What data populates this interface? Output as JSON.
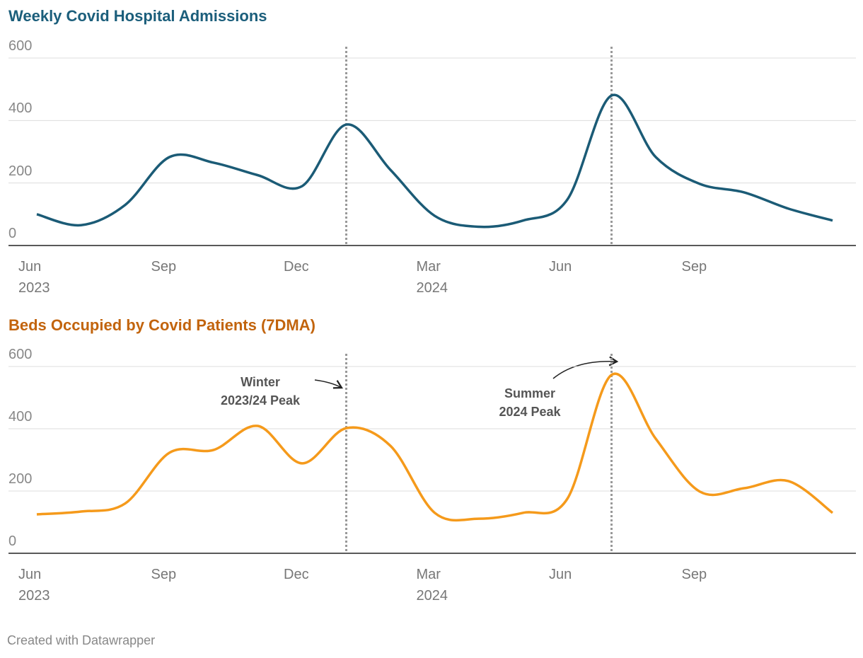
{
  "chart_data": [
    {
      "type": "line",
      "title": "Weekly Covid Hospital Admissions",
      "color": "#1b5b76",
      "title_color": "#1b5e7b",
      "x": [
        "2023-06",
        "2023-07",
        "2023-08",
        "2023-09",
        "2023-10",
        "2023-11",
        "2023-12",
        "2024-01",
        "2024-02",
        "2024-03",
        "2024-04",
        "2024-05",
        "2024-06",
        "2024-07",
        "2024-08",
        "2024-09",
        "2024-10",
        "2024-11",
        "2024-12"
      ],
      "values": [
        100,
        65,
        130,
        283,
        265,
        225,
        190,
        387,
        242,
        95,
        60,
        80,
        147,
        480,
        283,
        197,
        170,
        118,
        80
      ],
      "xlim": [
        "2023-06",
        "2024-12"
      ],
      "xticks": [
        {
          "value": "2023-06",
          "label": "Jun 2023"
        },
        {
          "value": "2023-09",
          "label": "Sep"
        },
        {
          "value": "2023-12",
          "label": "Dec"
        },
        {
          "value": "2024-03",
          "label": "Mar 2024"
        },
        {
          "value": "2024-06",
          "label": "Jun"
        },
        {
          "value": "2024-09",
          "label": "Sep"
        }
      ],
      "ylim": [
        0,
        600
      ],
      "yticks": [
        0,
        200,
        400,
        600
      ],
      "grid": true,
      "vlines": [
        "2024-01",
        "2024-07"
      ]
    },
    {
      "type": "line",
      "title": "Beds Occupied by Covid Patients (7DMA)",
      "color": "#f59a1b",
      "title_color": "#c2640d",
      "x": [
        "2023-06",
        "2023-07",
        "2023-08",
        "2023-09",
        "2023-10",
        "2023-11",
        "2023-12",
        "2024-01",
        "2024-02",
        "2024-03",
        "2024-04",
        "2024-05",
        "2024-06",
        "2024-07",
        "2024-08",
        "2024-09",
        "2024-10",
        "2024-11",
        "2024-12"
      ],
      "values": [
        125,
        134,
        160,
        323,
        332,
        409,
        289,
        402,
        345,
        130,
        111,
        130,
        175,
        573,
        368,
        198,
        209,
        232,
        130
      ],
      "xlim": [
        "2023-06",
        "2024-12"
      ],
      "xticks": [
        {
          "value": "2023-06",
          "label": "Jun 2023"
        },
        {
          "value": "2023-09",
          "label": "Sep"
        },
        {
          "value": "2023-12",
          "label": "Dec"
        },
        {
          "value": "2024-03",
          "label": "Mar 2024"
        },
        {
          "value": "2024-06",
          "label": "Jun"
        },
        {
          "value": "2024-09",
          "label": "Sep"
        }
      ],
      "ylim": [
        0,
        600
      ],
      "yticks": [
        0,
        200,
        400,
        600
      ],
      "grid": true,
      "vlines": [
        "2024-01",
        "2024-07"
      ],
      "annotations": [
        "Winter\n2023/24 Peak",
        "Summer\n2024 Peak"
      ]
    }
  ],
  "footer": "Created with Datawrapper"
}
